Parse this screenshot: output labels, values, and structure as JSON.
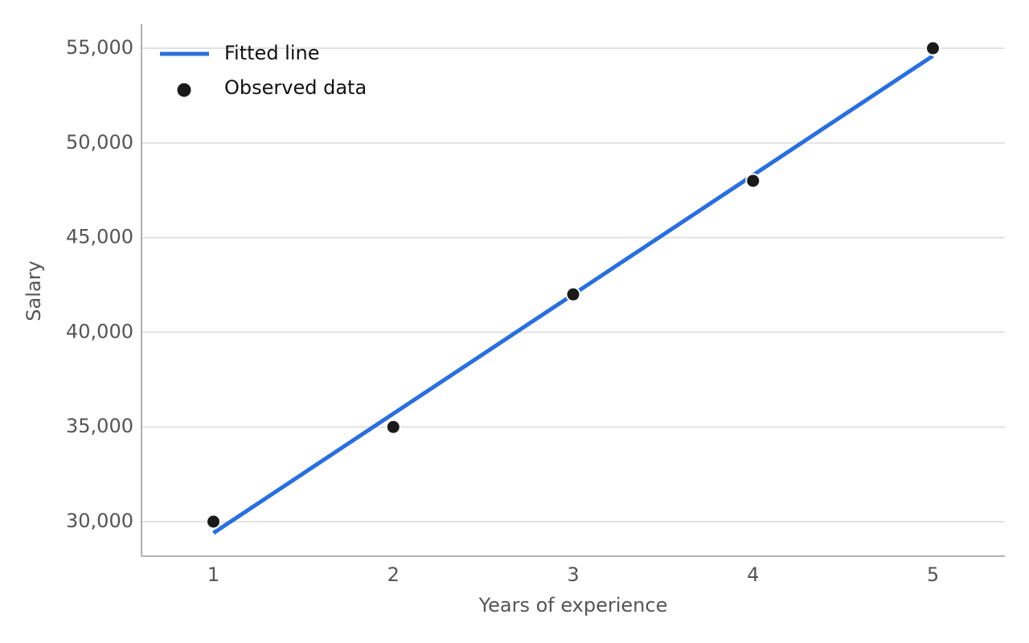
{
  "chart_data": {
    "type": "line",
    "xlabel": "Years of experience",
    "ylabel": "Salary",
    "x": [
      1,
      2,
      3,
      4,
      5
    ],
    "series": [
      {
        "name": "Fitted line",
        "type": "line",
        "color": "#2a6fdb",
        "values": [
          29400,
          35700,
          42000,
          48300,
          54600
        ]
      },
      {
        "name": "Observed data",
        "type": "scatter",
        "color": "#1a1a1a",
        "values": [
          30000,
          35000,
          42000,
          48000,
          55000
        ]
      }
    ],
    "xlim": [
      0.6,
      5.4
    ],
    "ylim": [
      28175,
      56275
    ],
    "xticks": [
      1,
      2,
      3,
      4,
      5
    ],
    "yticks": [
      {
        "value": 30000,
        "label": "30,000"
      },
      {
        "value": 35000,
        "label": "35,000"
      },
      {
        "value": 40000,
        "label": "40,000"
      },
      {
        "value": 45000,
        "label": "45,000"
      },
      {
        "value": 50000,
        "label": "50,000"
      },
      {
        "value": 55000,
        "label": "55,000"
      }
    ],
    "grid": "y",
    "legend": "upper left"
  }
}
